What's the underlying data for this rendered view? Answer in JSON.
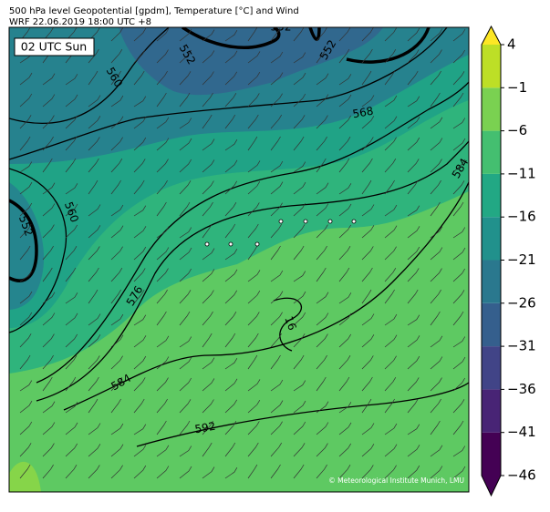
{
  "header": {
    "line1": "500 hPa level Geopotential [gpdm], Temperature [°C] and Wind",
    "line2": "WRF 22.06.2019 18:00 UTC +8"
  },
  "map": {
    "time_label": "02 UTC Sun",
    "credit": "© Meteorological Institute Munich, LMU",
    "contour_labels": [
      "552",
      "560",
      "552",
      "552",
      "568",
      "560",
      "552",
      "576",
      "584",
      "584",
      "592",
      "16"
    ]
  },
  "colorbar": {
    "lim": [
      -46,
      4
    ],
    "ticks": [
      4,
      {
        "value": -1,
        "label": "−1"
      },
      {
        "value": -6,
        "label": "−6"
      },
      {
        "value": -11,
        "label": "−11"
      },
      {
        "value": -16,
        "label": "−16"
      },
      {
        "value": -21,
        "label": "−21"
      },
      {
        "value": -26,
        "label": "−26"
      },
      {
        "value": -31,
        "label": "−31"
      },
      {
        "value": -36,
        "label": "−36"
      },
      {
        "value": -41,
        "label": "−41"
      },
      {
        "value": -46,
        "label": "−46"
      }
    ],
    "colors": [
      "#440154",
      "#482475",
      "#414487",
      "#355f8d",
      "#2a788e",
      "#21918c",
      "#22a884",
      "#44bf70",
      "#7ad151",
      "#bddf26"
    ],
    "over_color": "#fde725",
    "under_color": "#440154"
  }
}
